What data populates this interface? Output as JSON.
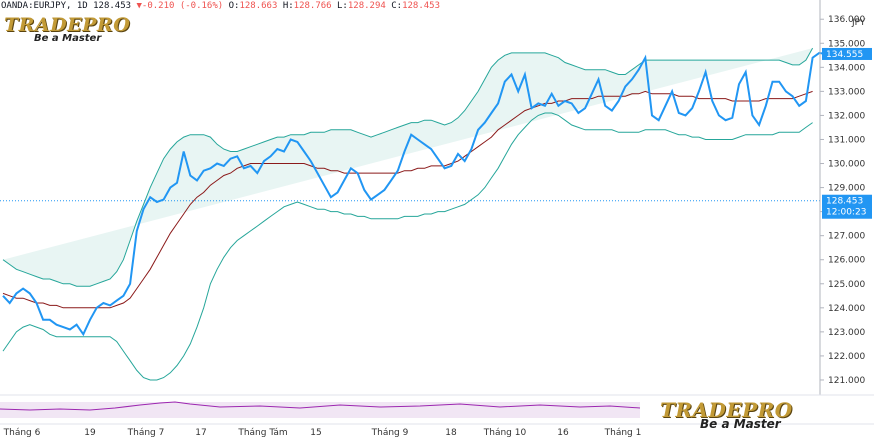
{
  "header": {
    "symbol": "OANDA:EURJPY, 1D",
    "last": "128.453",
    "change": "-0.210 (-0.16%)",
    "open_label": "O:",
    "open": "128.663",
    "high_label": "H:",
    "high": "128.766",
    "low_label": "L:",
    "low": "128.294",
    "close_label": "C:",
    "close": "128.453"
  },
  "logos": {
    "top_brand": "TRADEPRO",
    "top_tagline": "Be a Master",
    "bottom_brand": "TRADEPRO",
    "bottom_tagline": "Be a Master"
  },
  "chart_data": {
    "type": "line",
    "title": "",
    "currency": "JPY",
    "y_ticks": [
      121,
      122,
      123,
      124,
      125,
      126,
      127,
      128,
      129,
      130,
      131,
      132,
      133,
      134,
      135,
      136
    ],
    "y_tick_labels": [
      "121.000",
      "122.000",
      "123.000",
      "124.000",
      "125.000",
      "126.000",
      "127.000",
      "128.000",
      "129.000",
      "130.000",
      "131.000",
      "132.000",
      "133.000",
      "134.000",
      "135.000",
      "136.000"
    ],
    "ylim": [
      120.5,
      136.3
    ],
    "x_tick_labels": [
      "Tháng 6",
      "19",
      "Tháng 7",
      "17",
      "Tháng Tám",
      "15",
      "Tháng 9",
      "18",
      "Tháng 10",
      "16",
      "Tháng 1"
    ],
    "price_tag": {
      "value": 134.555,
      "label": "134.555"
    },
    "current_line": {
      "value": 128.453,
      "label": "128.453",
      "countdown": "12:00:23"
    },
    "colors": {
      "price": "#2196f3",
      "band": "#26a69a",
      "band_fill": "#e8f5f3",
      "basis": "#8b1a1a",
      "current_line": "#2196f3"
    },
    "series": [
      {
        "role": "price",
        "values": [
          124.5,
          124.2,
          124.6,
          124.8,
          124.6,
          124.2,
          123.5,
          123.5,
          123.3,
          123.2,
          123.1,
          123.3,
          122.9,
          123.5,
          124.0,
          124.2,
          124.1,
          124.3,
          124.5,
          125.0,
          127.2,
          128.1,
          128.6,
          128.4,
          128.5,
          129.0,
          129.2,
          130.5,
          129.5,
          129.3,
          129.7,
          129.8,
          130.0,
          129.9,
          130.2,
          130.3,
          129.8,
          129.9,
          129.6,
          130.1,
          130.3,
          130.6,
          130.5,
          131.0,
          130.9,
          130.5,
          130.1,
          129.6,
          129.1,
          128.6,
          128.8,
          129.3,
          129.8,
          129.6,
          128.9,
          128.5,
          128.7,
          128.9,
          129.3,
          129.7,
          130.5,
          131.2,
          131.0,
          130.8,
          130.6,
          130.2,
          129.8,
          129.9,
          130.4,
          130.1,
          130.6,
          131.4,
          131.7,
          132.1,
          132.5,
          133.4,
          133.7,
          133.0,
          133.7,
          132.3,
          132.5,
          132.4,
          132.9,
          132.4,
          132.6,
          132.5,
          132.1,
          132.3,
          132.9,
          133.5,
          132.4,
          132.2,
          132.6,
          133.2,
          133.5,
          133.9,
          134.4,
          132.0,
          131.8,
          132.4,
          133.0,
          132.1,
          132.0,
          132.3,
          133.0,
          133.8,
          132.6,
          132.0,
          131.8,
          131.9,
          133.3,
          133.8,
          132.0,
          131.6,
          132.4,
          133.4,
          133.4,
          133.0,
          132.8,
          132.4,
          132.6,
          134.4,
          134.6,
          134.55
        ]
      },
      {
        "role": "upper_band",
        "values": [
          126.0,
          125.8,
          125.6,
          125.5,
          125.4,
          125.3,
          125.2,
          125.2,
          125.1,
          125.0,
          125.0,
          124.9,
          124.9,
          124.9,
          125.0,
          125.1,
          125.2,
          125.5,
          126.0,
          126.8,
          127.6,
          128.3,
          129.0,
          129.6,
          130.2,
          130.6,
          130.9,
          131.1,
          131.2,
          131.2,
          131.2,
          131.1,
          130.8,
          130.6,
          130.5,
          130.5,
          130.6,
          130.7,
          130.8,
          130.9,
          131.0,
          131.1,
          131.1,
          131.2,
          131.2,
          131.2,
          131.3,
          131.3,
          131.3,
          131.4,
          131.4,
          131.4,
          131.4,
          131.3,
          131.2,
          131.1,
          131.2,
          131.3,
          131.4,
          131.5,
          131.6,
          131.7,
          131.7,
          131.8,
          131.8,
          131.7,
          131.6,
          131.7,
          131.9,
          132.2,
          132.6,
          133.0,
          133.5,
          134.0,
          134.3,
          134.5,
          134.6,
          134.6,
          134.6,
          134.6,
          134.6,
          134.6,
          134.5,
          134.4,
          134.2,
          134.1,
          134.0,
          133.9,
          133.9,
          133.9,
          133.9,
          133.8,
          133.7,
          133.7,
          133.9,
          134.1,
          134.3,
          134.3,
          134.3,
          134.3,
          134.3,
          134.3,
          134.3,
          134.3,
          134.3,
          134.3,
          134.3,
          134.3,
          134.3,
          134.3,
          134.3,
          134.3,
          134.3,
          134.3,
          134.3,
          134.3,
          134.3,
          134.2,
          134.1,
          134.1,
          134.3,
          134.8
        ]
      },
      {
        "role": "basis",
        "values": [
          124.6,
          124.5,
          124.4,
          124.4,
          124.3,
          124.2,
          124.2,
          124.1,
          124.1,
          124.0,
          124.0,
          124.0,
          124.0,
          124.0,
          124.0,
          124.0,
          124.0,
          124.1,
          124.2,
          124.4,
          124.8,
          125.2,
          125.6,
          126.1,
          126.6,
          127.1,
          127.5,
          127.9,
          128.3,
          128.6,
          128.8,
          129.1,
          129.3,
          129.5,
          129.6,
          129.8,
          129.9,
          130.0,
          130.0,
          130.0,
          130.0,
          130.0,
          130.0,
          130.0,
          130.0,
          130.0,
          129.9,
          129.8,
          129.8,
          129.7,
          129.7,
          129.6,
          129.6,
          129.6,
          129.6,
          129.6,
          129.6,
          129.6,
          129.6,
          129.6,
          129.7,
          129.7,
          129.8,
          129.8,
          129.9,
          129.9,
          129.9,
          130.0,
          130.1,
          130.3,
          130.5,
          130.7,
          130.9,
          131.1,
          131.4,
          131.6,
          131.8,
          132.0,
          132.2,
          132.3,
          132.4,
          132.5,
          132.5,
          132.6,
          132.6,
          132.7,
          132.7,
          132.7,
          132.7,
          132.8,
          132.8,
          132.8,
          132.8,
          132.8,
          132.9,
          132.9,
          133.0,
          132.9,
          132.9,
          132.9,
          132.9,
          132.8,
          132.8,
          132.8,
          132.7,
          132.7,
          132.7,
          132.7,
          132.7,
          132.6,
          132.6,
          132.6,
          132.6,
          132.6,
          132.7,
          132.7,
          132.7,
          132.7,
          132.7,
          132.8,
          132.9,
          133.0
        ]
      },
      {
        "role": "lower_band",
        "values": [
          122.2,
          122.6,
          123.0,
          123.2,
          123.3,
          123.2,
          123.1,
          122.9,
          122.8,
          122.8,
          122.8,
          122.8,
          122.8,
          122.8,
          122.8,
          122.8,
          122.8,
          122.6,
          122.2,
          121.8,
          121.4,
          121.1,
          121.0,
          121.0,
          121.1,
          121.3,
          121.6,
          122.0,
          122.5,
          123.2,
          124.0,
          125.0,
          125.6,
          126.1,
          126.5,
          126.8,
          127.0,
          127.2,
          127.4,
          127.6,
          127.8,
          128.0,
          128.2,
          128.3,
          128.4,
          128.3,
          128.2,
          128.1,
          128.1,
          128.0,
          128.0,
          127.9,
          127.9,
          127.8,
          127.8,
          127.7,
          127.7,
          127.7,
          127.7,
          127.7,
          127.8,
          127.8,
          127.8,
          127.9,
          127.9,
          128.0,
          128.0,
          128.1,
          128.2,
          128.3,
          128.5,
          128.7,
          129.0,
          129.4,
          129.8,
          130.3,
          130.8,
          131.2,
          131.5,
          131.8,
          132.0,
          132.1,
          132.1,
          132.0,
          131.8,
          131.6,
          131.5,
          131.4,
          131.4,
          131.4,
          131.4,
          131.4,
          131.3,
          131.3,
          131.3,
          131.3,
          131.4,
          131.4,
          131.4,
          131.4,
          131.3,
          131.2,
          131.2,
          131.1,
          131.1,
          131.0,
          131.0,
          131.0,
          131.0,
          131.0,
          131.1,
          131.2,
          131.2,
          131.2,
          131.2,
          131.2,
          131.3,
          131.3,
          131.3,
          131.3,
          131.5,
          131.7
        ]
      }
    ]
  }
}
